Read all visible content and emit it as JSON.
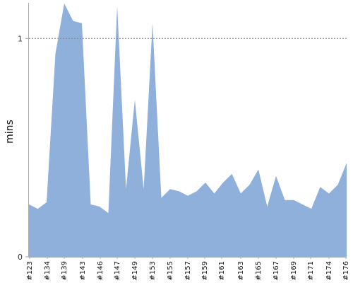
{
  "chart_data": {
    "type": "area",
    "ylabel": "mins",
    "ylim": [
      0,
      1.15
    ],
    "reference_line": {
      "value": 1,
      "style": "dashed"
    },
    "y_ticks": [
      0,
      1
    ],
    "tick_labels_x": [
      "#123",
      "#134",
      "#139",
      "#143",
      "#146",
      "#147",
      "#149",
      "#153",
      "#155",
      "#157",
      "#159",
      "#161",
      "#163",
      "#165",
      "#167",
      "#169",
      "#171",
      "#174",
      "#176"
    ],
    "series": [
      {
        "values": [
          0.24,
          0.22,
          0.25,
          0.93,
          1.16,
          1.08,
          1.07,
          0.24,
          0.23,
          0.2,
          1.15,
          0.31,
          0.72,
          0.31,
          1.07,
          0.27,
          0.31,
          0.3,
          0.28,
          0.3,
          0.34,
          0.29,
          0.34,
          0.38,
          0.29,
          0.33,
          0.4,
          0.23,
          0.37,
          0.26,
          0.26,
          0.24,
          0.22,
          0.32,
          0.29,
          0.33,
          0.43
        ]
      }
    ],
    "colors": {
      "fill": "#8eb0da",
      "axis": "#aaaaaa",
      "refline": "#888888"
    },
    "grid": false
  }
}
